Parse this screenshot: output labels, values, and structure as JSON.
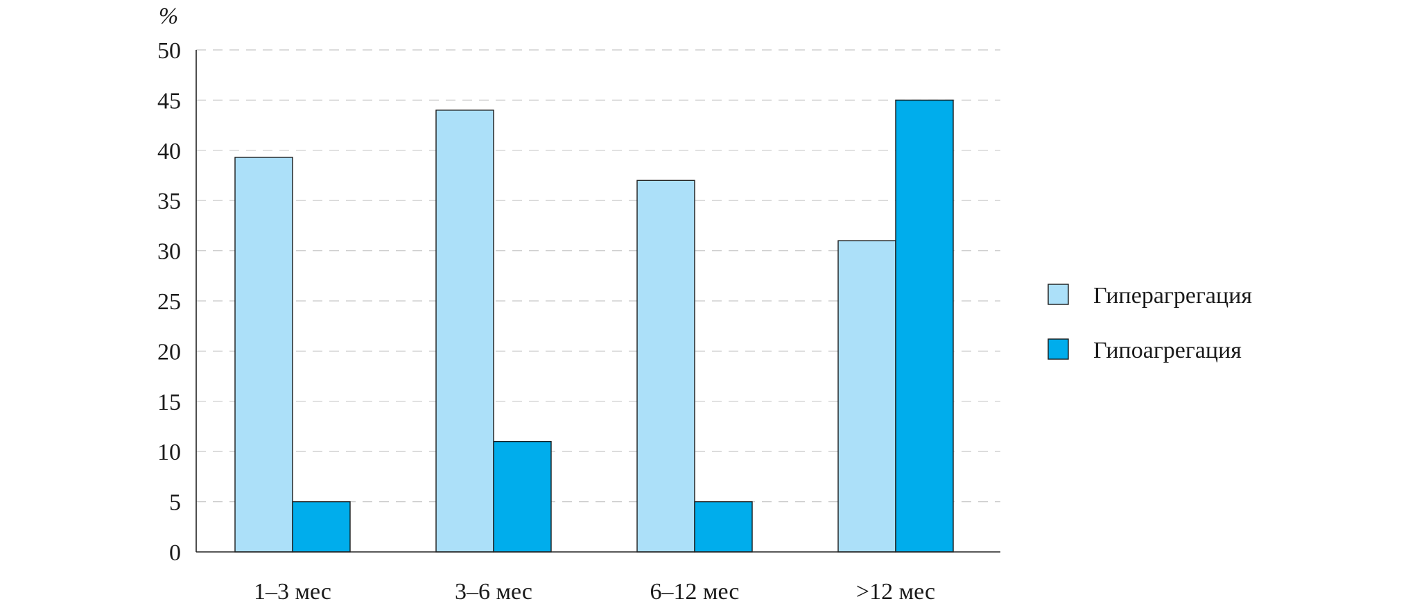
{
  "chart_data": {
    "type": "bar",
    "title": "",
    "ylabel": "%",
    "xlabel": "",
    "ylim": [
      0,
      50
    ],
    "yticks": [
      0,
      5,
      10,
      15,
      20,
      25,
      30,
      35,
      40,
      45,
      50
    ],
    "grid": true,
    "legend_position": "right",
    "categories": [
      "1–3 мес",
      "3–6 мес",
      "6–12 мес",
      ">12 мес"
    ],
    "series": [
      {
        "name": "Гиперагрегация",
        "color": "#ace0f9",
        "values": [
          39.3,
          44,
          37,
          31
        ]
      },
      {
        "name": "Гипоагрегация",
        "color": "#00adec",
        "values": [
          5,
          11,
          5,
          45
        ]
      }
    ]
  }
}
